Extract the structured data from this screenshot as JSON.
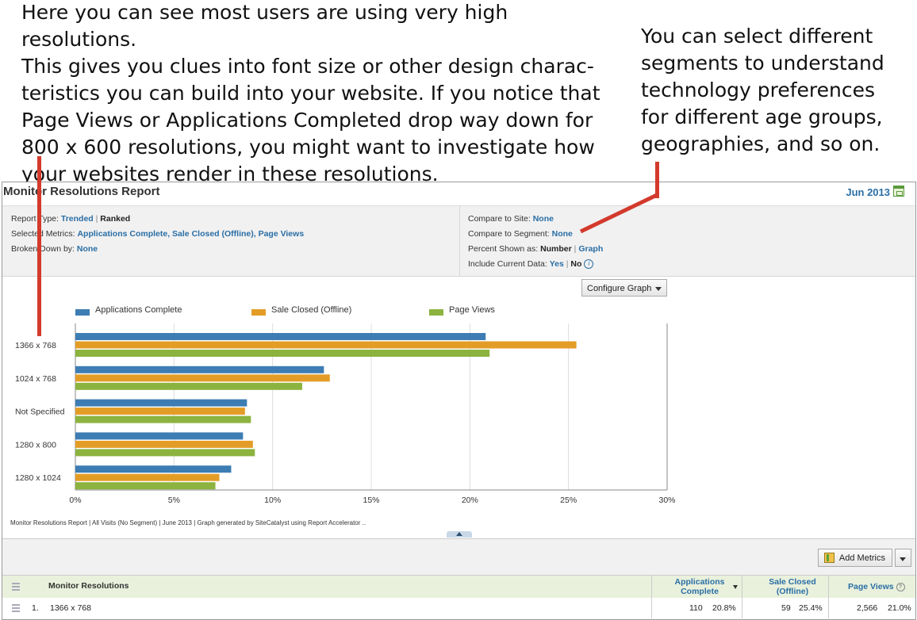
{
  "callouts": {
    "left_lines": [
      "Here you can see most users are using very high resolutions.",
      "This gives you clues into font size or other design charac-",
      "teristics you can build into your website. If you notice that",
      "Page Views or Applications Completed drop way down for",
      "800 x 600 resolutions, you might want to investigate how",
      "your websites render in these resolutions."
    ],
    "right_lines": [
      "You can select different",
      "segments to understand",
      "technology preferences",
      "for different age groups,",
      "geographies, and so on."
    ]
  },
  "report": {
    "title": "Monitor Resolutions Report",
    "date": "Jun 2013",
    "calendar_icon": "calendar-icon"
  },
  "settings": {
    "report_type_label": "Report Type:",
    "report_type_trended": "Trended",
    "report_type_sep": "|",
    "report_type_ranked": "Ranked",
    "metrics_label": "Selected Metrics:",
    "metrics_value": "Applications Complete, Sale Closed (Offline), Page Views",
    "broken_label": "Broken Down by:",
    "broken_value": "None",
    "compare_site_label": "Compare to Site:",
    "compare_site_value": "None",
    "compare_segment_label": "Compare to Segment:",
    "compare_segment_value": "None",
    "percent_label": "Percent Shown as:",
    "percent_number": "Number",
    "percent_sep": "|",
    "percent_graph": "Graph",
    "current_label": "Include Current Data:",
    "current_yes": "Yes",
    "current_sep": "|",
    "current_no": "No",
    "info_glyph": "i"
  },
  "configure_graph": "Configure Graph",
  "chart_data": {
    "type": "bar",
    "orientation": "horizontal",
    "categories": [
      "1366 x 768",
      "1024 x 768",
      "Not Specified",
      "1280 x 800",
      "1280 x 1024"
    ],
    "series": [
      {
        "name": "Applications Complete",
        "color": "#3d7db3",
        "values": [
          20.8,
          12.6,
          8.7,
          8.5,
          7.9
        ]
      },
      {
        "name": "Sale Closed (Offline)",
        "color": "#e39d26",
        "values": [
          25.4,
          12.9,
          8.6,
          9.0,
          7.3
        ]
      },
      {
        "name": "Page Views",
        "color": "#8cb33f",
        "values": [
          21.0,
          11.5,
          8.9,
          9.1,
          7.1
        ]
      }
    ],
    "x_ticks": [
      "0%",
      "5%",
      "10%",
      "15%",
      "20%",
      "25%",
      "30%"
    ],
    "xlim": [
      0,
      30
    ],
    "x_unit": "percent",
    "grid": true,
    "legend_position": "top"
  },
  "footnote": "Monitor Resolutions Report | All Visits (No Segment) | June 2013 | Graph generated by SiteCatalyst using Report Accelerator ..",
  "add_metrics": "Add Metrics",
  "table": {
    "headers": {
      "dimension": "Monitor Resolutions",
      "col1_line1": "Applications",
      "col1_line2": "Complete",
      "col2_line1": "Sale Closed",
      "col2_line2": "(Offline)",
      "col3": "Page Views",
      "help_glyph": "?"
    },
    "rows": [
      {
        "rank": "1.",
        "name": "1366 x 768",
        "c1": "110",
        "c1p": "20.8%",
        "c2": "59",
        "c2p": "25.4%",
        "c3": "2,566",
        "c3p": "21.0%"
      }
    ]
  }
}
